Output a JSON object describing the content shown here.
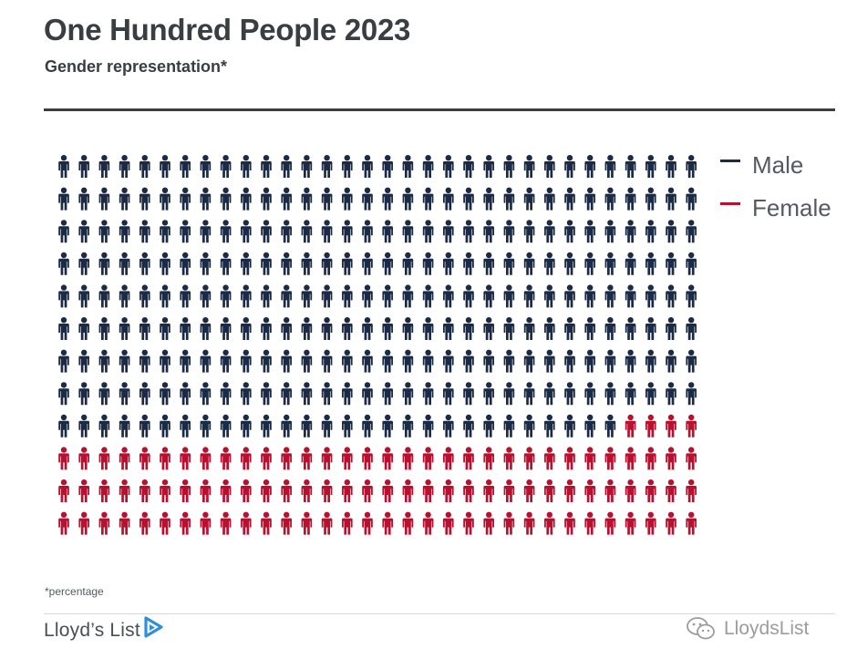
{
  "header": {
    "title": "One Hundred People 2023",
    "subtitle": "Gender representation*"
  },
  "chart_data": {
    "type": "pictogram",
    "title": "One Hundred People 2023",
    "subtitle": "Gender representation*",
    "unit": "percentage",
    "series": [
      {
        "name": "Male",
        "value": 74,
        "color": "#1c2b45"
      },
      {
        "name": "Female",
        "value": 26,
        "color": "#b8102e"
      }
    ],
    "total": 100,
    "legend_position": "top-right"
  },
  "legend": [
    {
      "label": "Male",
      "color": "#1c2b45"
    },
    {
      "label": "Female",
      "color": "#b8102e"
    }
  ],
  "footer": {
    "footnote": "*percentage",
    "brand": "Lloyd’s List",
    "watermark": "LloydsList"
  },
  "colors": {
    "text": "#3a3d42",
    "male": "#1c2b45",
    "female": "#b8102e",
    "logo": "#2f8fd8"
  },
  "icons": {
    "person": "person-icon",
    "logo": "play-arrow-logo-icon",
    "watermark": "wechat-icon"
  }
}
